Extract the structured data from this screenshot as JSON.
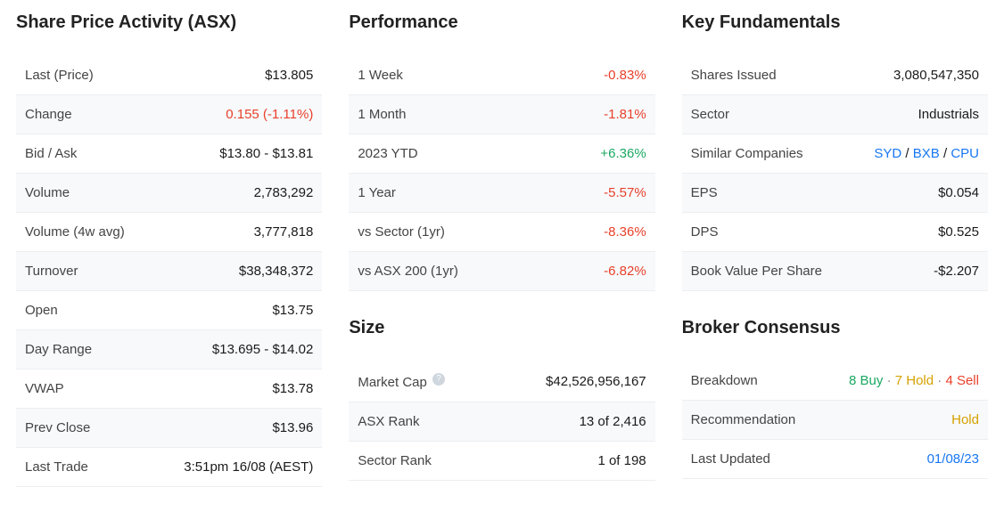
{
  "sharePrice": {
    "title": "Share Price Activity (ASX)",
    "rows": [
      {
        "label": "Last (Price)",
        "value": "$13.805"
      },
      {
        "label": "Change",
        "value": "0.155 (-1.11%)",
        "cls": "neg"
      },
      {
        "label": "Bid / Ask",
        "value": "$13.80 - $13.81"
      },
      {
        "label": "Volume",
        "value": "2,783,292"
      },
      {
        "label": "Volume (4w avg)",
        "value": "3,777,818"
      },
      {
        "label": "Turnover",
        "value": "$38,348,372"
      },
      {
        "label": "Open",
        "value": "$13.75"
      },
      {
        "label": "Day Range",
        "value": "$13.695 - $14.02"
      },
      {
        "label": "VWAP",
        "value": "$13.78"
      },
      {
        "label": "Prev Close",
        "value": "$13.96"
      },
      {
        "label": "Last Trade",
        "value": "3:51pm 16/08 (AEST)"
      }
    ]
  },
  "performance": {
    "title": "Performance",
    "rows": [
      {
        "label": "1 Week",
        "value": "-0.83%",
        "cls": "neg"
      },
      {
        "label": "1 Month",
        "value": "-1.81%",
        "cls": "neg"
      },
      {
        "label": "2023 YTD",
        "value": "+6.36%",
        "cls": "pos"
      },
      {
        "label": "1 Year",
        "value": "-5.57%",
        "cls": "neg"
      },
      {
        "label": "vs Sector (1yr)",
        "value": "-8.36%",
        "cls": "neg"
      },
      {
        "label": "vs ASX 200 (1yr)",
        "value": "-6.82%",
        "cls": "neg"
      }
    ]
  },
  "size": {
    "title": "Size",
    "rows": [
      {
        "label": "Market Cap",
        "help": true,
        "value": "$42,526,956,167"
      },
      {
        "label": "ASX Rank",
        "value": "13 of 2,416"
      },
      {
        "label": "Sector Rank",
        "value": "1 of 198"
      }
    ]
  },
  "fundamentals": {
    "title": "Key Fundamentals",
    "rows": [
      {
        "label": "Shares Issued",
        "value": "3,080,547,350"
      },
      {
        "label": "Sector",
        "value": "Industrials"
      },
      {
        "label": "Similar Companies",
        "links": [
          "SYD",
          "BXB",
          "CPU"
        ]
      },
      {
        "label": "EPS",
        "value": "$0.054"
      },
      {
        "label": "DPS",
        "value": "$0.525"
      },
      {
        "label": "Book Value Per Share",
        "value": "-$2.207"
      }
    ]
  },
  "broker": {
    "title": "Broker Consensus",
    "breakdownLabel": "Breakdown",
    "breakdown": {
      "buy": "8 Buy",
      "hold": "7 Hold",
      "sell": "4 Sell"
    },
    "recommendationLabel": "Recommendation",
    "recommendation": "Hold",
    "lastUpdatedLabel": "Last Updated",
    "lastUpdated": "01/08/23"
  }
}
